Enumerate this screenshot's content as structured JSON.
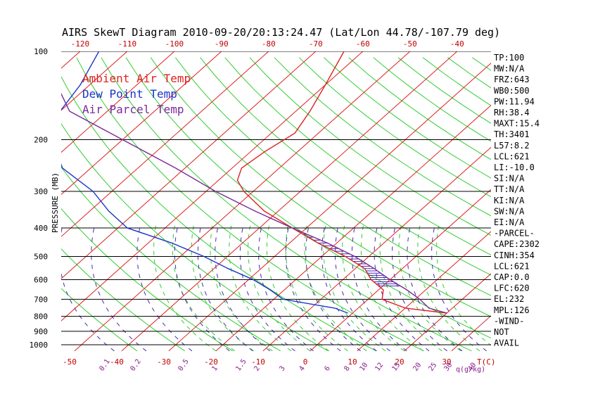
{
  "chart_data": {
    "type": "line",
    "title": "AIRS SkewT Diagram 2010-09-20/20:13:24.47 (Lat/Lon 44.78/-107.79 deg)",
    "ylabel": "PRESSURE (MB)",
    "xlabel": "T(C)",
    "mixing_label": "q(g/kg)",
    "pressure_ticks": [
      100,
      200,
      300,
      400,
      500,
      600,
      700,
      800,
      900,
      1000
    ],
    "top_temp_ticks": [
      -120,
      -110,
      -100,
      -90,
      -80,
      -70,
      -60,
      -50,
      -40
    ],
    "bottom_temp_ticks": [
      -50,
      -40,
      -30,
      -20,
      -10,
      0,
      10,
      20,
      30
    ],
    "mixing_ratio_ticks": [
      "0.1",
      "0.2",
      "0.5",
      "1",
      "1.5",
      "2",
      "3",
      "4",
      "6",
      "8",
      "10",
      "12",
      "15",
      "20",
      "25",
      "30",
      "40"
    ],
    "legend": [
      {
        "name": "Ambient Air Temp",
        "color": "#dd2222"
      },
      {
        "name": "Dew Point Temp",
        "color": "#1a35cc"
      },
      {
        "name": "Air Parcel Temp",
        "color": "#7a2a9a"
      }
    ],
    "series": [
      {
        "name": "Ambient Air Temp",
        "color": "#dd2222",
        "points": [
          [
            100,
            -64
          ],
          [
            130,
            -60
          ],
          [
            160,
            -57
          ],
          [
            190,
            -55
          ],
          [
            220,
            -57
          ],
          [
            250,
            -58
          ],
          [
            275,
            -56
          ],
          [
            300,
            -52
          ],
          [
            350,
            -43
          ],
          [
            400,
            -33
          ],
          [
            450,
            -24
          ],
          [
            500,
            -15
          ],
          [
            550,
            -8
          ],
          [
            600,
            -4
          ],
          [
            650,
            1
          ],
          [
            700,
            3
          ],
          [
            750,
            10
          ],
          [
            780,
            20
          ]
        ]
      },
      {
        "name": "Dew Point Temp",
        "color": "#1a35cc",
        "points": [
          [
            100,
            -116
          ],
          [
            130,
            -112
          ],
          [
            160,
            -110
          ],
          [
            200,
            -105
          ],
          [
            250,
            -96
          ],
          [
            300,
            -84
          ],
          [
            350,
            -76
          ],
          [
            400,
            -68
          ],
          [
            450,
            -55
          ],
          [
            500,
            -45
          ],
          [
            550,
            -37
          ],
          [
            600,
            -29
          ],
          [
            650,
            -23
          ],
          [
            700,
            -18
          ],
          [
            750,
            -5
          ],
          [
            780,
            -1
          ]
        ]
      },
      {
        "name": "Air Parcel Temp",
        "color": "#7a2a9a",
        "points": [
          [
            100,
            -130
          ],
          [
            130,
            -117
          ],
          [
            160,
            -108
          ],
          [
            200,
            -90
          ],
          [
            250,
            -72
          ],
          [
            300,
            -58
          ],
          [
            350,
            -45
          ],
          [
            400,
            -33
          ],
          [
            450,
            -22
          ],
          [
            500,
            -13
          ],
          [
            550,
            -6
          ],
          [
            600,
            0
          ],
          [
            650,
            6
          ],
          [
            700,
            11
          ],
          [
            750,
            15
          ],
          [
            780,
            20
          ]
        ]
      }
    ],
    "indices": [
      "TP:100",
      "MW:N/A",
      "FRZ:643",
      "WB0:500",
      "PW:11.94",
      "RH:38.4",
      "MAXT:15.4",
      "TH:3401",
      "L57:8.2",
      "LCL:621",
      "LI:-10.0",
      "SI:N/A",
      "TT:N/A",
      "KI:N/A",
      "SW:N/A",
      "EI:N/A",
      "-PARCEL-",
      "CAPE:2302",
      "CINH:354",
      "LCL:621",
      "CAP:0.0",
      "LFC:620",
      "EL:232",
      "MPL:126",
      "-WIND-",
      "NOT",
      "AVAIL"
    ]
  }
}
